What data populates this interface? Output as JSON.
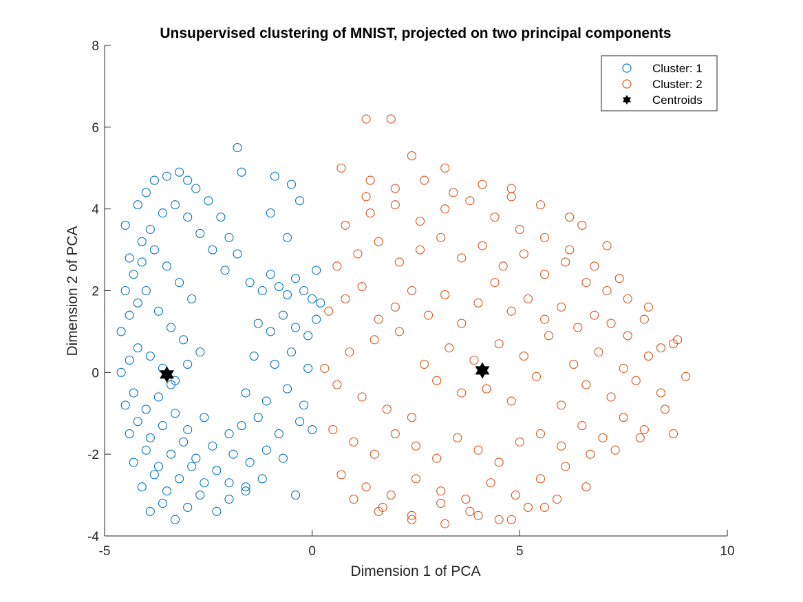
{
  "chart_data": {
    "type": "scatter",
    "title": "Unsupervised clustering of MNIST, projected on two principal components",
    "xlabel": "Dimension 1 of PCA",
    "ylabel": "Dimension 2 of PCA",
    "xlim": [
      -5,
      10
    ],
    "ylim": [
      -4,
      8
    ],
    "xticks": [
      "-5",
      "0",
      "5",
      "10"
    ],
    "yticks": [
      "-4",
      "-2",
      "0",
      "2",
      "4",
      "6",
      "8"
    ],
    "grid": false,
    "legend_position": "top-right",
    "series": [
      {
        "name": "Cluster: 1",
        "marker": "open-circle",
        "color": "#0072BD",
        "x": [
          -4.5,
          -4.2,
          -4.0,
          -3.8,
          -3.5,
          -3.2,
          -3.0,
          -2.8,
          -2.5,
          -2.2,
          -2.0,
          -1.8,
          -4.4,
          -4.1,
          -3.9,
          -3.6,
          -3.3,
          -3.0,
          -2.7,
          -2.4,
          -2.1,
          -4.5,
          -4.3,
          -4.1,
          -3.8,
          -3.5,
          -3.2,
          -2.9,
          -4.6,
          -4.4,
          -4.2,
          -4.0,
          -3.7,
          -3.4,
          -3.1,
          -4.6,
          -4.4,
          -4.2,
          -3.9,
          -3.6,
          -3.3,
          -3.0,
          -2.7,
          -4.5,
          -4.3,
          -4.0,
          -3.7,
          -3.4,
          -4.4,
          -4.2,
          -3.9,
          -3.6,
          -3.3,
          -3.0,
          -2.6,
          -4.3,
          -4.0,
          -3.7,
          -3.4,
          -3.1,
          -2.8,
          -2.4,
          -2.0,
          -4.1,
          -3.8,
          -3.5,
          -3.2,
          -2.9,
          -2.6,
          -2.3,
          -3.9,
          -3.6,
          -3.3,
          -3.0,
          -2.7,
          -2.3,
          -2.0,
          -1.6,
          -1.5,
          -1.2,
          -1.0,
          -0.8,
          -0.6,
          -0.4,
          -0.2,
          0.0,
          0.1,
          -1.3,
          -1.0,
          -0.7,
          -0.4,
          -0.1,
          0.1,
          -1.4,
          -0.9,
          -0.5,
          -0.1,
          -1.6,
          -1.1,
          -0.6,
          -0.2,
          -1.7,
          -1.3,
          -0.8,
          -0.3,
          0.0,
          -1.9,
          -1.5,
          -1.1,
          -0.7,
          -2.0,
          -1.6,
          -1.2,
          -0.3,
          -0.9,
          -0.6,
          -0.5,
          0.2,
          -1.0,
          -1.8,
          -1.7,
          -0.4
        ],
        "y": [
          3.6,
          4.1,
          4.4,
          4.7,
          4.8,
          4.9,
          4.7,
          4.5,
          4.2,
          3.8,
          3.3,
          2.9,
          2.8,
          3.2,
          3.5,
          3.9,
          4.1,
          3.8,
          3.4,
          3.0,
          2.5,
          2.0,
          2.4,
          2.7,
          3.0,
          2.6,
          2.2,
          1.8,
          1.0,
          1.4,
          1.7,
          2.0,
          1.5,
          1.1,
          0.8,
          0.0,
          0.3,
          0.6,
          0.4,
          0.1,
          -0.2,
          0.2,
          0.5,
          -0.8,
          -0.5,
          -0.9,
          -0.6,
          -0.3,
          -1.5,
          -1.2,
          -1.6,
          -1.3,
          -1.0,
          -1.4,
          -1.1,
          -2.2,
          -1.9,
          -2.3,
          -2.0,
          -1.7,
          -2.1,
          -1.8,
          -1.5,
          -2.8,
          -2.5,
          -2.9,
          -2.6,
          -2.3,
          -2.7,
          -2.4,
          -3.4,
          -3.2,
          -3.6,
          -3.3,
          -3.0,
          -3.4,
          -3.1,
          -2.8,
          2.2,
          2.0,
          2.4,
          2.1,
          1.9,
          2.3,
          2.0,
          1.8,
          2.5,
          1.2,
          1.0,
          1.4,
          1.1,
          0.9,
          1.3,
          0.4,
          0.2,
          0.5,
          0.1,
          -0.5,
          -0.7,
          -0.4,
          -0.8,
          -1.3,
          -1.1,
          -1.5,
          -1.2,
          -1.4,
          -2.0,
          -2.2,
          -1.9,
          -2.1,
          -2.7,
          -2.9,
          -2.6,
          4.2,
          4.8,
          3.3,
          4.6,
          1.7,
          3.9,
          5.5,
          4.9,
          -3.0
        ]
      },
      {
        "name": "Cluster: 2",
        "marker": "open-circle",
        "color": "#D95319",
        "x": [
          0.3,
          0.6,
          0.9,
          1.2,
          1.5,
          1.8,
          2.1,
          2.4,
          2.7,
          3.0,
          3.3,
          3.6,
          3.9,
          4.2,
          4.5,
          4.8,
          5.1,
          5.4,
          5.7,
          6.0,
          6.3,
          6.6,
          6.9,
          7.2,
          7.5,
          7.8,
          8.1,
          8.4,
          8.7,
          9.0,
          0.4,
          0.8,
          1.2,
          1.6,
          2.0,
          2.4,
          2.8,
          3.2,
          3.6,
          4.0,
          4.4,
          4.8,
          5.2,
          5.6,
          6.0,
          6.4,
          6.8,
          7.2,
          7.6,
          8.0,
          8.4,
          8.8,
          0.5,
          1.0,
          1.5,
          2.0,
          2.5,
          3.0,
          3.5,
          4.0,
          4.5,
          5.0,
          5.5,
          6.0,
          6.5,
          7.0,
          7.5,
          8.0,
          8.5,
          0.6,
          1.1,
          1.6,
          2.1,
          2.6,
          3.1,
          3.6,
          4.1,
          4.6,
          5.1,
          5.6,
          6.1,
          6.6,
          7.1,
          7.6,
          8.1,
          0.7,
          1.3,
          1.9,
          2.5,
          3.1,
          3.7,
          4.3,
          4.9,
          5.5,
          6.1,
          6.7,
          7.3,
          7.9,
          0.8,
          1.4,
          2.0,
          2.6,
          3.2,
          3.8,
          4.4,
          5.0,
          5.6,
          6.2,
          6.8,
          7.4,
          1.0,
          1.7,
          2.4,
          3.1,
          3.8,
          4.5,
          5.2,
          5.9,
          6.6,
          1.3,
          2.0,
          2.7,
          3.4,
          4.1,
          4.8,
          5.5,
          6.2,
          1.6,
          2.4,
          3.2,
          4.0,
          4.8,
          5.6,
          1.3,
          1.9,
          2.4,
          3.2,
          0.7,
          1.4,
          4.8,
          6.5,
          7.1,
          8.7
        ],
        "y": [
          0.1,
          -0.3,
          0.5,
          -0.6,
          0.8,
          -0.9,
          1.0,
          -1.1,
          0.2,
          -0.2,
          0.6,
          -0.5,
          0.3,
          -0.4,
          0.7,
          -0.7,
          0.4,
          -0.1,
          0.9,
          -0.8,
          0.2,
          -0.3,
          0.5,
          -0.6,
          0.1,
          -0.2,
          0.4,
          -0.5,
          0.7,
          -0.1,
          1.5,
          1.8,
          2.1,
          1.3,
          1.6,
          2.0,
          1.4,
          1.9,
          1.2,
          1.7,
          2.2,
          1.5,
          1.8,
          1.3,
          1.6,
          1.1,
          1.4,
          1.2,
          0.9,
          1.3,
          0.6,
          0.8,
          -1.4,
          -1.7,
          -2.0,
          -1.5,
          -1.8,
          -2.1,
          -1.6,
          -1.9,
          -2.2,
          -1.7,
          -1.5,
          -1.8,
          -1.3,
          -1.6,
          -1.1,
          -1.4,
          -0.9,
          2.6,
          2.9,
          3.2,
          2.7,
          3.0,
          3.3,
          2.8,
          3.1,
          2.6,
          2.9,
          2.4,
          2.7,
          2.2,
          2.0,
          1.8,
          1.6,
          -2.5,
          -2.8,
          -3.0,
          -2.6,
          -2.9,
          -3.1,
          -2.7,
          -3.0,
          -2.6,
          -2.3,
          -2.0,
          -1.9,
          -1.6,
          3.6,
          3.9,
          4.1,
          3.7,
          4.0,
          4.2,
          3.8,
          3.5,
          3.3,
          3.0,
          2.6,
          2.3,
          -3.1,
          -3.3,
          -3.5,
          -3.2,
          -3.4,
          -3.6,
          -3.3,
          -3.1,
          -2.8,
          4.3,
          4.5,
          4.7,
          4.4,
          4.6,
          4.3,
          4.1,
          3.8,
          -3.4,
          -3.6,
          -3.7,
          -3.5,
          -3.6,
          -3.3,
          6.2,
          6.2,
          5.3,
          5.0,
          5.0,
          4.7,
          4.5,
          3.6,
          3.1,
          -1.5
        ]
      },
      {
        "name": "Centroids",
        "marker": "hexagram",
        "color": "#000000",
        "x": [
          -3.5,
          4.1
        ],
        "y": [
          -0.05,
          0.05
        ]
      }
    ]
  }
}
